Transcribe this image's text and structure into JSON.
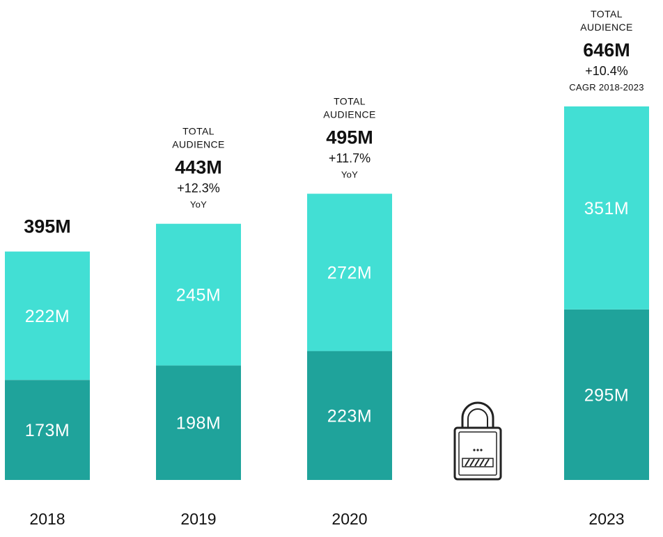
{
  "chart_data": {
    "type": "bar",
    "stacked": true,
    "categories": [
      "2018",
      "2019",
      "2020",
      "2023"
    ],
    "series": [
      {
        "name": "bottom",
        "color": "#1fa39b",
        "values": [
          173,
          198,
          223,
          295
        ],
        "labels": [
          "173M",
          "198M",
          "223M",
          "295M"
        ]
      },
      {
        "name": "top",
        "color": "#42dfd4",
        "values": [
          222,
          245,
          272,
          351
        ],
        "labels": [
          "222M",
          "245M",
          "272M",
          "351M"
        ]
      }
    ],
    "totals": [
      {
        "value": "395M"
      },
      {
        "heading_line1": "TOTAL",
        "heading_line2": "AUDIENCE",
        "value": "443M",
        "growth": "+12.3%",
        "note": "YoY"
      },
      {
        "heading_line1": "TOTAL",
        "heading_line2": "AUDIENCE",
        "value": "495M",
        "growth": "+11.7%",
        "note": "YoY"
      },
      {
        "heading_line1": "TOTAL",
        "heading_line2": "AUDIENCE",
        "value": "646M",
        "growth": "+10.4%",
        "note": "CAGR 2018-2023"
      }
    ],
    "locked_slot": {
      "icon": "lock-icon"
    },
    "ylim": [
      0,
      646
    ]
  }
}
